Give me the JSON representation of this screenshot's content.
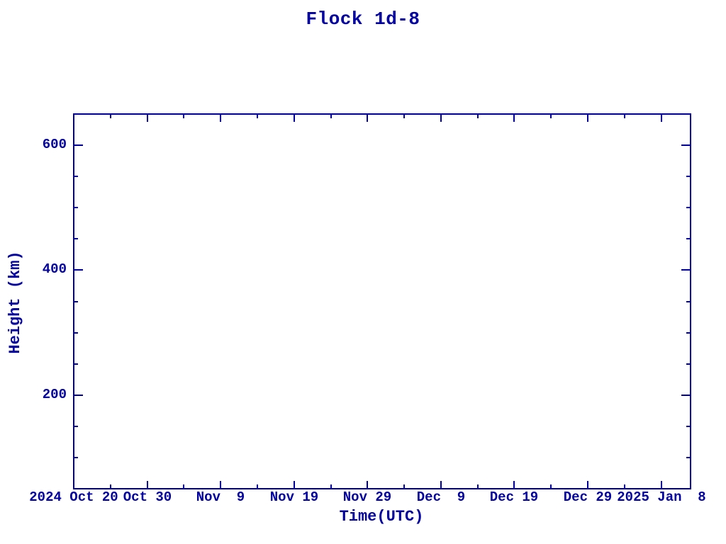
{
  "colors": {
    "ink": "#0000a0",
    "background": "#ffffff"
  },
  "chart_data": {
    "type": "line",
    "title": "Flock 1d-8",
    "xlabel": "Time(UTC)",
    "ylabel": "Height (km)",
    "series": [],
    "note_visible_data": "plot area is empty - no data points drawn",
    "x_axis": {
      "start_label": "2024 Oct 20",
      "end_label": "2025 Jan  8",
      "range_days": 84,
      "major_tick_interval_days": 10,
      "minor_tick_interval_days": 5,
      "major_ticks": [
        {
          "day": 0,
          "label": "2024 Oct 20"
        },
        {
          "day": 10,
          "label": "Oct 30"
        },
        {
          "day": 20,
          "label": "Nov  9"
        },
        {
          "day": 30,
          "label": "Nov 19"
        },
        {
          "day": 40,
          "label": "Nov 29"
        },
        {
          "day": 50,
          "label": "Dec  9"
        },
        {
          "day": 60,
          "label": "Dec 19"
        },
        {
          "day": 70,
          "label": "Dec 29"
        },
        {
          "day": 80,
          "label": "2025 Jan  8"
        }
      ],
      "minor_ticks_days": [
        5,
        15,
        25,
        35,
        45,
        55,
        65,
        75
      ]
    },
    "y_axis": {
      "min": 50,
      "max": 650,
      "unit": "km",
      "major_ticks": [
        {
          "value": 200,
          "label": "200"
        },
        {
          "value": 400,
          "label": "400"
        },
        {
          "value": 600,
          "label": "600"
        }
      ],
      "minor_ticks": [
        100,
        150,
        250,
        300,
        350,
        450,
        500,
        550
      ]
    },
    "grid": false,
    "legend": false,
    "tick_style": "inward, mirrored on top and right axes"
  }
}
